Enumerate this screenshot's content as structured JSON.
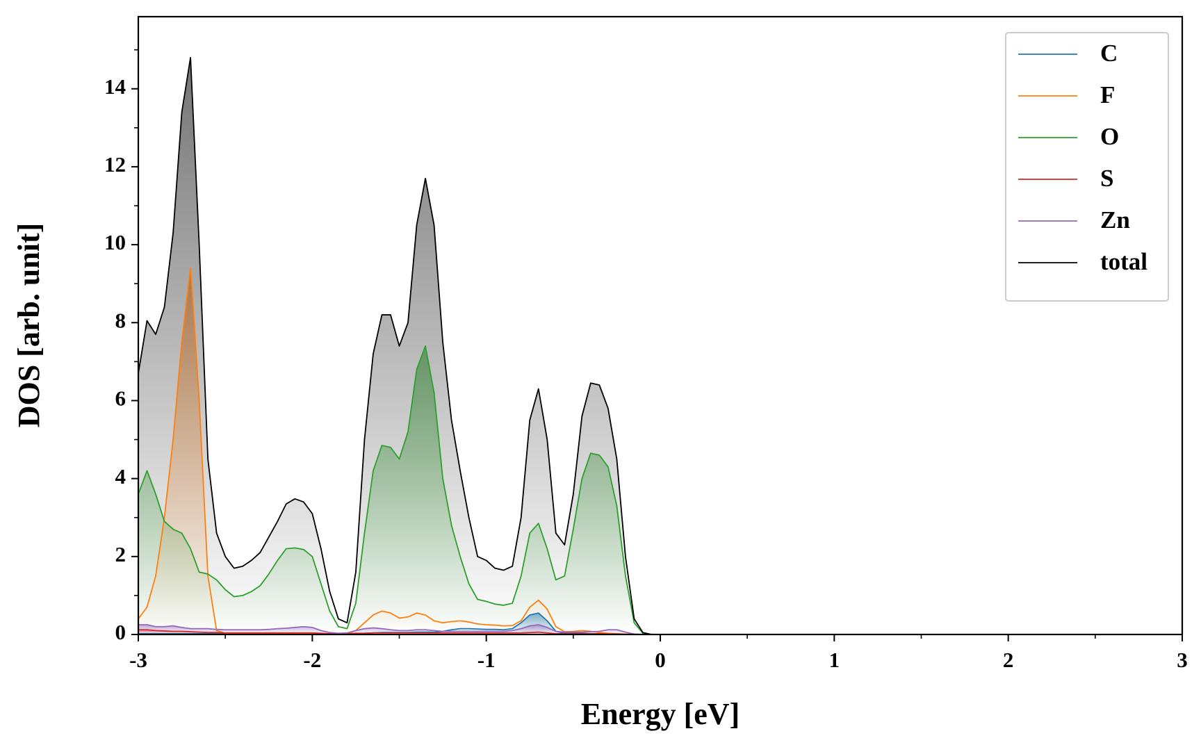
{
  "chart_data": {
    "type": "line",
    "xlabel": "Energy [eV]",
    "ylabel": "DOS [arb. unit]",
    "xlim": [
      -3,
      3
    ],
    "ylim": [
      0,
      15.85
    ],
    "xticks": [
      -3,
      -2,
      -1,
      0,
      1,
      2,
      3
    ],
    "yticks": [
      0,
      2,
      4,
      6,
      8,
      10,
      12,
      14
    ],
    "xminorticks": [
      -2.5,
      -1.5,
      -0.5,
      0.5,
      1.5,
      2.5
    ],
    "yminorticks": [
      1,
      3,
      5,
      7,
      9,
      11,
      13,
      15
    ],
    "legend": "upper right",
    "fill": true,
    "x": [
      -3,
      -2.95,
      -2.9,
      -2.85,
      -2.8,
      -2.75,
      -2.7,
      -2.65,
      -2.6,
      -2.55,
      -2.5,
      -2.45,
      -2.4,
      -2.35,
      -2.3,
      -2.25,
      -2.2,
      -2.15,
      -2.1,
      -2.05,
      -2,
      -1.95,
      -1.9,
      -1.85,
      -1.8,
      -1.75,
      -1.7,
      -1.65,
      -1.6,
      -1.55,
      -1.5,
      -1.45,
      -1.4,
      -1.35,
      -1.3,
      -1.25,
      -1.2,
      -1.15,
      -1.1,
      -1.05,
      -1,
      -0.95,
      -0.9,
      -0.85,
      -0.8,
      -0.75,
      -0.7,
      -0.65,
      -0.6,
      -0.55,
      -0.5,
      -0.45,
      -0.4,
      -0.35,
      -0.3,
      -0.25,
      -0.2,
      -0.15,
      -0.1,
      -0.05,
      0,
      3
    ],
    "series": [
      {
        "name": "C",
        "color": "#1f77b4",
        "values": [
          0.02,
          0.02,
          0.02,
          0.02,
          0.02,
          0.02,
          0.02,
          0.02,
          0.02,
          0.02,
          0.02,
          0.02,
          0.02,
          0.02,
          0.02,
          0.02,
          0.02,
          0.02,
          0.02,
          0.02,
          0.02,
          0.02,
          0.01,
          0.01,
          0.01,
          0.02,
          0.03,
          0.04,
          0.05,
          0.05,
          0.05,
          0.05,
          0.06,
          0.06,
          0.06,
          0.08,
          0.12,
          0.15,
          0.15,
          0.14,
          0.13,
          0.13,
          0.12,
          0.15,
          0.3,
          0.5,
          0.55,
          0.35,
          0.08,
          0.03,
          0.03,
          0.03,
          0.02,
          0.02,
          0.01,
          0.01,
          0,
          0,
          0,
          0,
          0,
          0
        ]
      },
      {
        "name": "F",
        "color": "#ff7f0e",
        "values": [
          0.4,
          0.7,
          1.5,
          3.0,
          5.0,
          7.5,
          9.4,
          6.0,
          1.5,
          0.1,
          0.03,
          0.02,
          0.02,
          0.02,
          0.02,
          0.02,
          0.02,
          0.02,
          0.02,
          0.02,
          0.02,
          0.02,
          0.02,
          0.02,
          0.02,
          0.1,
          0.3,
          0.5,
          0.6,
          0.55,
          0.42,
          0.45,
          0.55,
          0.5,
          0.35,
          0.3,
          0.33,
          0.35,
          0.32,
          0.27,
          0.25,
          0.24,
          0.22,
          0.23,
          0.35,
          0.7,
          0.88,
          0.65,
          0.2,
          0.07,
          0.08,
          0.1,
          0.08,
          0.05,
          0.03,
          0.02,
          0.01,
          0,
          0,
          0,
          0,
          0
        ]
      },
      {
        "name": "O",
        "color": "#2ca02c",
        "values": [
          3.6,
          4.2,
          3.6,
          2.9,
          2.7,
          2.6,
          2.2,
          1.6,
          1.55,
          1.4,
          1.15,
          0.97,
          1.0,
          1.1,
          1.25,
          1.55,
          1.9,
          2.2,
          2.22,
          2.18,
          2.0,
          1.3,
          0.6,
          0.2,
          0.15,
          0.8,
          2.6,
          4.2,
          4.85,
          4.8,
          4.5,
          5.2,
          6.8,
          7.4,
          6.2,
          4.0,
          2.8,
          2.0,
          1.3,
          0.9,
          0.85,
          0.78,
          0.75,
          0.8,
          1.5,
          2.6,
          2.85,
          2.2,
          1.4,
          1.5,
          2.7,
          4.0,
          4.65,
          4.6,
          4.3,
          3.3,
          1.5,
          0.3,
          0.03,
          0,
          0,
          0
        ]
      },
      {
        "name": "S",
        "color": "#d62728",
        "values": [
          0.12,
          0.12,
          0.1,
          0.09,
          0.08,
          0.08,
          0.07,
          0.06,
          0.05,
          0.05,
          0.04,
          0.04,
          0.04,
          0.04,
          0.04,
          0.04,
          0.04,
          0.04,
          0.04,
          0.04,
          0.04,
          0.03,
          0.02,
          0.02,
          0.02,
          0.03,
          0.03,
          0.04,
          0.04,
          0.04,
          0.04,
          0.04,
          0.04,
          0.04,
          0.04,
          0.04,
          0.04,
          0.04,
          0.04,
          0.04,
          0.04,
          0.04,
          0.04,
          0.04,
          0.04,
          0.05,
          0.06,
          0.04,
          0.02,
          0.02,
          0.02,
          0.02,
          0.02,
          0.02,
          0.01,
          0.01,
          0,
          0,
          0,
          0,
          0,
          0
        ]
      },
      {
        "name": "Zn",
        "color": "#9467bd",
        "values": [
          0.25,
          0.25,
          0.2,
          0.2,
          0.22,
          0.18,
          0.15,
          0.15,
          0.15,
          0.13,
          0.12,
          0.12,
          0.12,
          0.12,
          0.12,
          0.13,
          0.15,
          0.16,
          0.18,
          0.2,
          0.18,
          0.1,
          0.05,
          0.03,
          0.04,
          0.1,
          0.15,
          0.17,
          0.15,
          0.12,
          0.1,
          0.1,
          0.12,
          0.12,
          0.1,
          0.08,
          0.08,
          0.08,
          0.08,
          0.08,
          0.08,
          0.08,
          0.08,
          0.1,
          0.15,
          0.22,
          0.25,
          0.18,
          0.08,
          0.06,
          0.06,
          0.06,
          0.07,
          0.08,
          0.12,
          0.12,
          0.06,
          0.01,
          0,
          0,
          0,
          0
        ]
      },
      {
        "name": "total",
        "color": "#000000",
        "values": [
          6.7,
          8.05,
          7.7,
          8.4,
          10.3,
          13.4,
          14.8,
          10.0,
          4.5,
          2.6,
          2.0,
          1.7,
          1.75,
          1.9,
          2.1,
          2.5,
          2.9,
          3.35,
          3.48,
          3.4,
          3.1,
          2.2,
          1.1,
          0.4,
          0.3,
          1.6,
          5.0,
          7.2,
          8.2,
          8.2,
          7.4,
          8.0,
          10.5,
          11.7,
          10.5,
          7.5,
          5.5,
          4.2,
          3.0,
          2.0,
          1.9,
          1.7,
          1.65,
          1.75,
          3.0,
          5.5,
          6.3,
          5.0,
          2.6,
          2.3,
          3.6,
          5.6,
          6.45,
          6.4,
          5.8,
          4.5,
          2.0,
          0.4,
          0.05,
          0,
          0,
          0
        ]
      }
    ]
  }
}
